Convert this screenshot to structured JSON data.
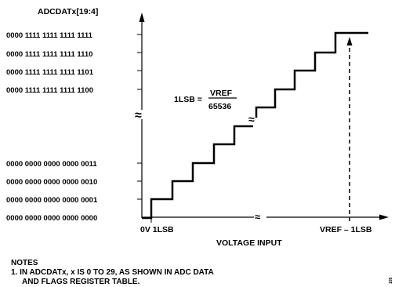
{
  "diagram": {
    "y_axis_label": "ADCDATx[19:4]",
    "codes_top": [
      "0000 1111 1111 1111 1111",
      "0000 1111 1111 1111 1110",
      "0000 1111 1111 1111 1101",
      "0000 1111 1111 1111 1100"
    ],
    "codes_bottom": [
      "0000 0000 0000 0000 0011",
      "0000 0000 0000 0000 0010",
      "0000 0000 0000 0000 0001",
      "0000 0000 0000 0000 0000"
    ],
    "formula": {
      "lhs": "1LSB =",
      "numerator": "VREF",
      "denominator": "65536"
    },
    "x_tick_left": "0V 1LSB",
    "x_tick_right": "VREF – 1LSB",
    "x_axis_label": "VOLTAGE INPUT",
    "break_mark_x": "≈",
    "break_mark_y": "≈",
    "break_mark_curve": "≈",
    "notes_heading": "NOTES",
    "notes_line1": "1. IN ADCDATx, x IS 0 TO 29, AS SHOWN IN ADC DATA",
    "notes_line2": "AND FLAGS REGISTER TABLE.",
    "figure_id": "105",
    "colors": {
      "ink": "#000000",
      "background": "#ffffff"
    }
  }
}
